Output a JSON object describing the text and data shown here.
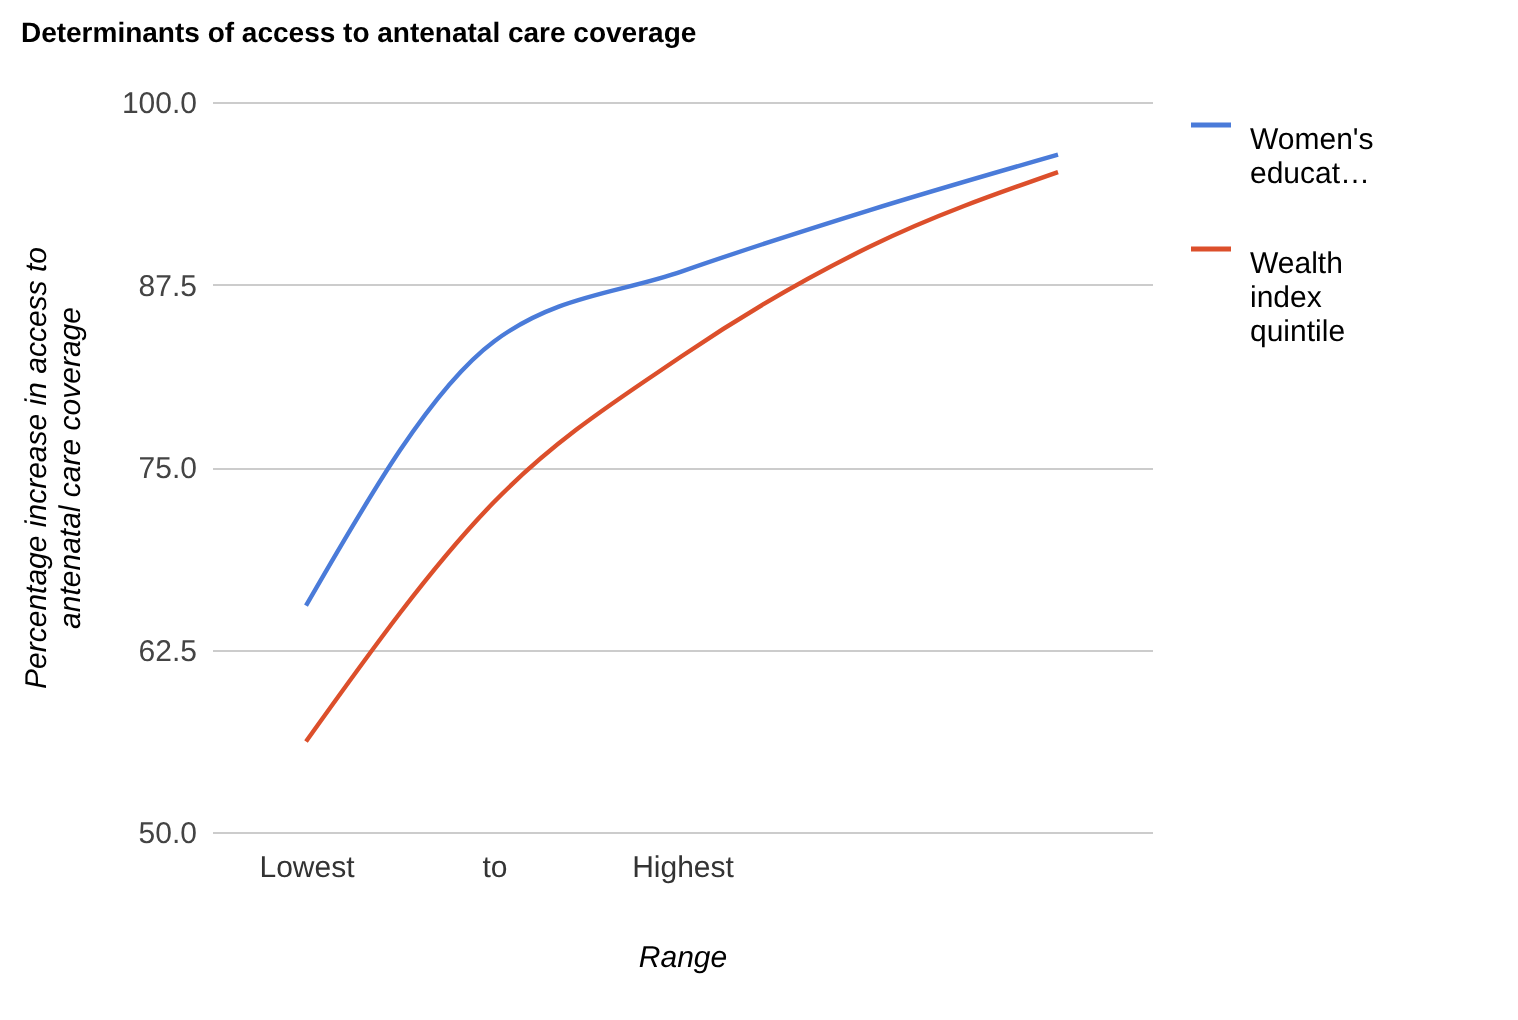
{
  "chart_data": {
    "type": "line",
    "title": "Determinants of access to antenatal care coverage",
    "xlabel": "Range",
    "ylabel": "Percentage increase in access to\nantenatal care coverage",
    "categories": [
      "Lowest",
      "to",
      "Highest",
      null,
      null
    ],
    "series": [
      {
        "name": "Women's educat…",
        "color": "#4a7bd9",
        "values": [
          65.5,
          83.6,
          88.4,
          92.6,
          96.4
        ]
      },
      {
        "name": "Wealth index quintile",
        "color": "#dc4f2b",
        "values": [
          56.2,
          72.6,
          82.6,
          90.1,
          95.2
        ]
      }
    ],
    "ylim": [
      50,
      100
    ],
    "yticks": [
      {
        "value": 50,
        "label": "50.0"
      },
      {
        "value": 62.5,
        "label": "62.5"
      },
      {
        "value": 75,
        "label": "75.0"
      },
      {
        "value": 87.5,
        "label": "87.5"
      },
      {
        "value": 100,
        "label": "100.0"
      }
    ],
    "grid": "y",
    "legend": "top right",
    "marker": "none",
    "line_style": "solid"
  }
}
